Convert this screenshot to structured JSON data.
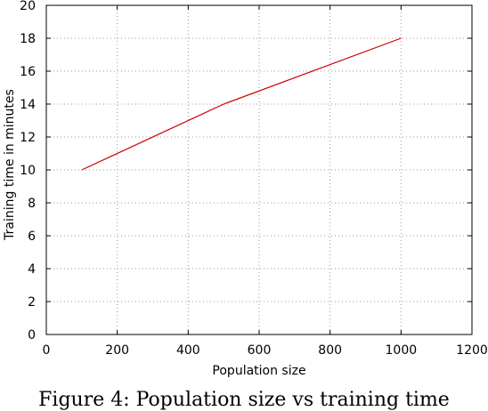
{
  "caption": "Figure 4: Population size vs training time",
  "chart_data": {
    "type": "line",
    "title": "",
    "xlabel": "Population size",
    "ylabel": "Training time in minutes",
    "xlim": [
      0,
      1200
    ],
    "ylim": [
      0,
      20
    ],
    "xticks": [
      0,
      200,
      400,
      600,
      800,
      1000,
      1200
    ],
    "yticks": [
      0,
      2,
      4,
      6,
      8,
      10,
      12,
      14,
      16,
      18,
      20
    ],
    "x_tick_labels": [
      "0",
      "200",
      "400",
      "600",
      "800",
      "1000",
      "1200"
    ],
    "y_tick_labels": [
      "0",
      "2",
      "4",
      "6",
      "8",
      "10",
      "12",
      "14",
      "16",
      "18",
      "20"
    ],
    "grid": true,
    "legend": "none",
    "series": [
      {
        "color": "#cc0000",
        "x": [
          100,
          500,
          1000
        ],
        "y": [
          10,
          14,
          18
        ]
      }
    ]
  }
}
